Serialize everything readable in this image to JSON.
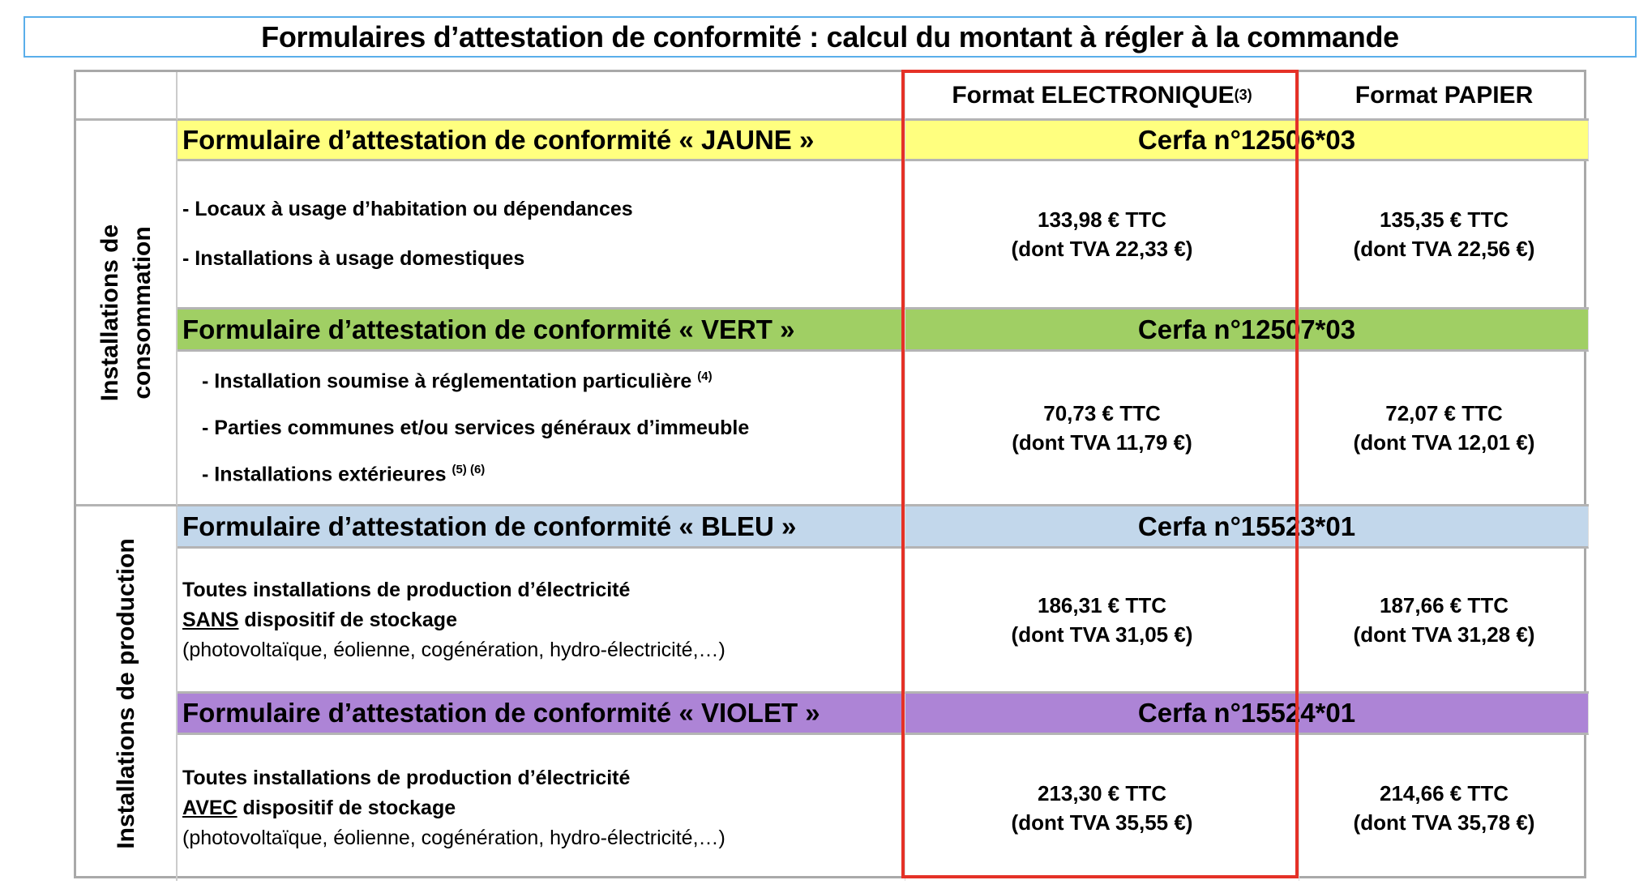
{
  "title": "Formulaires d’attestation de conformité : calcul du montant à régler à la commande",
  "header": {
    "electronic": "Format ELECTRONIQUE",
    "electronic_note": "(3)",
    "paper": "Format PAPIER"
  },
  "groups": {
    "consumption": "Installations de consommation",
    "consumption_l1": "Installations de",
    "consumption_l2": "consommation",
    "production": "Installations de production"
  },
  "colors": {
    "jaune": "#ffff7f",
    "vert": "#a0cf64",
    "bleu": "#c2d7eb",
    "violet": "#ad84d6",
    "highlight": "#e53127"
  },
  "forms": [
    {
      "label": "Formulaire d’attestation de conformité « JAUNE »",
      "cerfa": "Cerfa n°12506*03",
      "items": [
        "- Locaux à usage d’habitation ou dépendances",
        "- Installations à usage  domestiques"
      ],
      "electronic": {
        "price": "133,98 € TTC",
        "tva": "(dont TVA 22,33 €)"
      },
      "paper": {
        "price": "135,35 € TTC",
        "tva": "(dont TVA 22,56 €)"
      }
    },
    {
      "label": "Formulaire d’attestation de conformité « VERT »",
      "cerfa": "Cerfa n°12507*03",
      "items": [
        "- Installation soumise à réglementation particulière",
        "- Parties communes et/ou services généraux d’immeuble",
        "- Installations extérieures"
      ],
      "notes": [
        "(4)",
        "(5) (6)"
      ],
      "electronic": {
        "price": "70,73 € TTC",
        "tva": "(dont TVA 11,79 €)"
      },
      "paper": {
        "price": "72,07 € TTC",
        "tva": "(dont TVA 12,01 €)"
      }
    },
    {
      "label": "Formulaire d’attestation de conformité « BLEU »",
      "cerfa": "Cerfa n°15523*01",
      "line1": "Toutes installations de production d’électricité",
      "keyword": "SANS",
      "line2": " dispositif de stockage",
      "examples": "(photovoltaïque, éolienne, cogénération, hydro-électricité,…)",
      "electronic": {
        "price": "186,31 € TTC",
        "tva": "(dont TVA 31,05 €)"
      },
      "paper": {
        "price": "187,66 € TTC",
        "tva": "(dont TVA 31,28 €)"
      }
    },
    {
      "label": "Formulaire d’attestation de conformité « VIOLET »",
      "cerfa": "Cerfa n°15524*01",
      "line1": "Toutes installations de production d’électricité",
      "keyword": "AVEC",
      "line2": " dispositif de stockage",
      "examples": "(photovoltaïque, éolienne, cogénération, hydro-électricité,…)",
      "electronic": {
        "price": "213,30 € TTC",
        "tva": "(dont TVA 35,55 €)"
      },
      "paper": {
        "price": "214,66 € TTC",
        "tva": "(dont TVA 35,78 €)"
      }
    }
  ]
}
